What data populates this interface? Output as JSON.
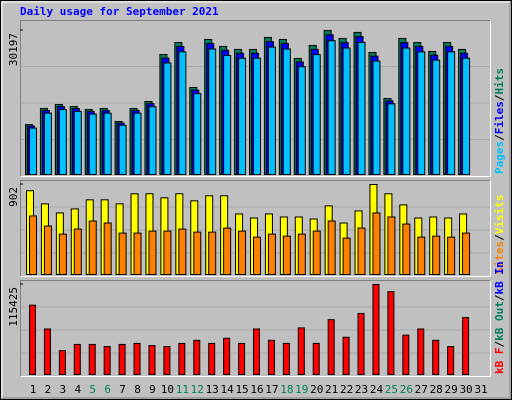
{
  "chart_data": [
    {
      "type": "bar",
      "title": "Daily usage for September 2021",
      "title_color": "#0000FF",
      "legend_separator": "/",
      "ylim": [
        0,
        30197
      ],
      "yticks": [
        30197
      ],
      "series": [
        {
          "name": "Hits",
          "color": "#00805C",
          "values": [
            10600,
            13960,
            14790,
            14370,
            13750,
            13960,
            11250,
            13960,
            15410,
            25200,
            27700,
            18330,
            28330,
            26870,
            26250,
            26250,
            28750,
            28330,
            24370,
            27080,
            30197,
            28540,
            29800,
            25620,
            16040,
            28540,
            27700,
            25830,
            27700,
            26250,
            0
          ]
        },
        {
          "name": "Files",
          "color": "#0000FF",
          "values": [
            10280,
            13540,
            14350,
            13940,
            13340,
            13540,
            10910,
            13540,
            14950,
            24440,
            26870,
            17780,
            27480,
            26060,
            25460,
            25460,
            27890,
            27480,
            23640,
            26270,
            29290,
            27680,
            28910,
            24850,
            15560,
            27680,
            26870,
            25060,
            26870,
            25460,
            0
          ]
        },
        {
          "name": "Pages",
          "color": "#00C0FF",
          "values": [
            9860,
            12980,
            13750,
            13360,
            12790,
            12980,
            10460,
            12980,
            14330,
            23440,
            25760,
            17050,
            26350,
            24990,
            24410,
            24410,
            26740,
            26350,
            22660,
            25180,
            28080,
            26540,
            27710,
            23830,
            14920,
            26540,
            25760,
            24020,
            25760,
            24410,
            0
          ]
        }
      ]
    },
    {
      "type": "bar",
      "legend_separator": "/",
      "ylim": [
        0,
        902
      ],
      "yticks": [
        902
      ],
      "series": [
        {
          "name": "Visits",
          "color": "#FFFF00",
          "values": [
            840,
            710,
            620,
            660,
            750,
            750,
            710,
            810,
            810,
            770,
            810,
            740,
            790,
            790,
            610,
            570,
            610,
            580,
            580,
            560,
            690,
            520,
            640,
            902,
            810,
            700,
            570,
            580,
            570,
            610,
            0
          ]
        },
        {
          "name": "Sites",
          "color": "#FF8000",
          "values": [
            590,
            490,
            410,
            460,
            540,
            520,
            420,
            420,
            440,
            440,
            460,
            430,
            430,
            470,
            440,
            380,
            410,
            390,
            410,
            440,
            540,
            370,
            470,
            620,
            580,
            510,
            380,
            390,
            380,
            420,
            0
          ]
        }
      ]
    },
    {
      "type": "bar",
      "legend_separator": "/",
      "ylim": [
        0,
        115425
      ],
      "yticks": [
        115425
      ],
      "categories": [
        "1",
        "2",
        "3",
        "4",
        "5",
        "6",
        "7",
        "8",
        "9",
        "10",
        "11",
        "12",
        "13",
        "14",
        "15",
        "16",
        "17",
        "18",
        "19",
        "20",
        "21",
        "22",
        "23",
        "24",
        "25",
        "26",
        "27",
        "28",
        "29",
        "30",
        "31"
      ],
      "category_colors": [
        "#000000",
        "#000000",
        "#000000",
        "#000000",
        "#00805C",
        "#00805C",
        "#000000",
        "#000000",
        "#000000",
        "#000000",
        "#00805C",
        "#00805C",
        "#000000",
        "#000000",
        "#000000",
        "#000000",
        "#000000",
        "#00805C",
        "#00805C",
        "#000000",
        "#000000",
        "#000000",
        "#000000",
        "#000000",
        "#00805C",
        "#00805C",
        "#000000",
        "#000000",
        "#000000",
        "#000000",
        "#000000"
      ],
      "series": [
        {
          "name": "kB F",
          "color": "#FF0000",
          "values": [
            89200,
            59000,
            31500,
            39400,
            39400,
            36700,
            39400,
            40700,
            38000,
            36700,
            40700,
            44600,
            40700,
            47200,
            40700,
            59000,
            44600,
            40700,
            60400,
            40700,
            70800,
            48500,
            78700,
            115425,
            106300,
            51200,
            59000,
            44600,
            36700,
            73500,
            0
          ]
        }
      ],
      "legend_extra": [
        {
          "name": "kB Out",
          "color": "#00805C"
        },
        {
          "name": "kB In",
          "color": "#0000FF"
        }
      ]
    }
  ]
}
